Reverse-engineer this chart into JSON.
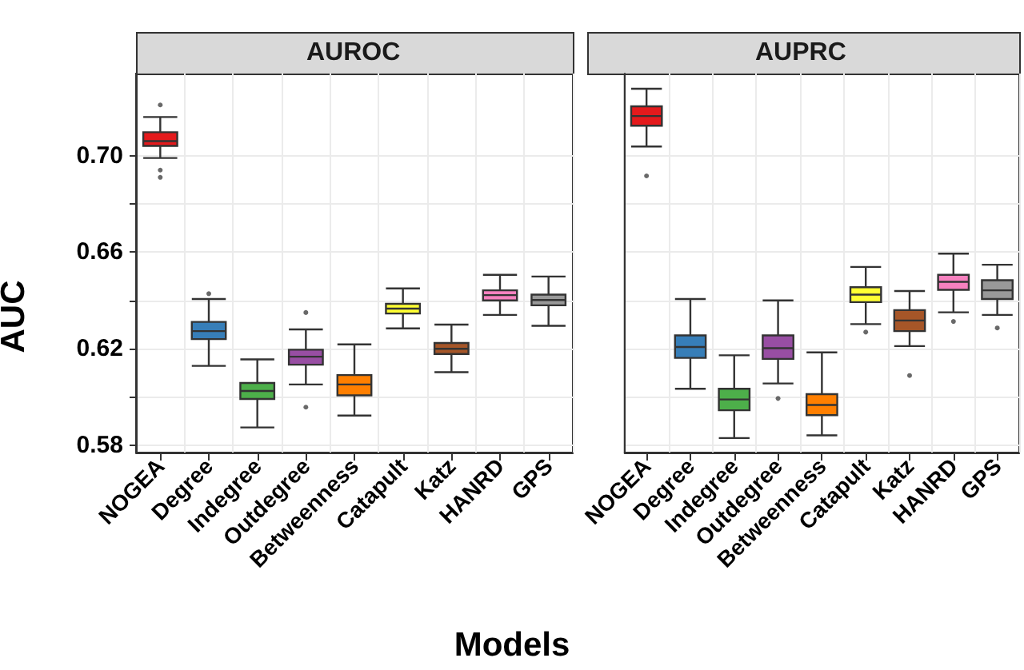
{
  "chart_data": [
    {
      "type": "box",
      "title": "AUROC",
      "xlabel": "Models",
      "ylabel": "AUC",
      "categories": [
        "NOGEA",
        "Degree",
        "Indegree",
        "Outdegree",
        "Betweenness",
        "Catapult",
        "Katz",
        "HANRD",
        "GPS"
      ],
      "colors": [
        "#e41a1c",
        "#377eb8",
        "#4daf4a",
        "#984ea3",
        "#ff7f00",
        "#ffff33",
        "#a65628",
        "#f781bf",
        "#999999"
      ],
      "boxes": [
        {
          "low": 0.699,
          "q1": 0.704,
          "median": 0.706,
          "q3": 0.7097,
          "high": 0.716,
          "outliers": [
            0.691,
            0.694,
            0.721
          ]
        },
        {
          "low": 0.6129,
          "q1": 0.624,
          "median": 0.6273,
          "q3": 0.6311,
          "high": 0.6406,
          "outliers": [
            0.6428
          ]
        },
        {
          "low": 0.5874,
          "q1": 0.5992,
          "median": 0.6025,
          "q3": 0.6058,
          "high": 0.6156
        },
        {
          "low": 0.6052,
          "q1": 0.6134,
          "median": 0.6167,
          "q3": 0.6196,
          "high": 0.628,
          "outliers": [
            0.635,
            0.5958
          ]
        },
        {
          "low": 0.5923,
          "q1": 0.6007,
          "median": 0.6052,
          "q3": 0.6091,
          "high": 0.6218
        },
        {
          "low": 0.6284,
          "q1": 0.6346,
          "median": 0.6366,
          "q3": 0.6386,
          "high": 0.645
        },
        {
          "low": 0.6103,
          "q1": 0.6178,
          "median": 0.62,
          "q3": 0.6224,
          "high": 0.63
        },
        {
          "low": 0.634,
          "q1": 0.64,
          "median": 0.6422,
          "q3": 0.6442,
          "high": 0.6506
        },
        {
          "low": 0.6295,
          "q1": 0.638,
          "median": 0.6402,
          "q3": 0.6424,
          "high": 0.6499
        }
      ],
      "ylim": [
        0.577,
        0.734
      ],
      "yticks": [
        0.58,
        {
          "value": 0.6,
          "label": null
        },
        0.62,
        {
          "value": 0.64,
          "label": null
        },
        0.66,
        {
          "value": 0.68,
          "label": null
        },
        {
          "value": 0.7,
          "label": "0.70"
        }
      ],
      "grid": true
    },
    {
      "type": "box",
      "title": "AUPRC",
      "categories": [
        "NOGEA",
        "Degree",
        "Indegree",
        "Outdegree",
        "Betweenness",
        "Catapult",
        "Katz",
        "HANRD",
        "GPS"
      ],
      "colors": [
        "#e41a1c",
        "#377eb8",
        "#4daf4a",
        "#984ea3",
        "#ff7f00",
        "#ffff33",
        "#a65628",
        "#f781bf",
        "#999999"
      ],
      "boxes": [
        {
          "low": 0.7038,
          "q1": 0.7124,
          "median": 0.7164,
          "q3": 0.7204,
          "high": 0.7277,
          "outliers": [
            0.6916
          ]
        },
        {
          "low": 0.6034,
          "q1": 0.6162,
          "median": 0.6207,
          "q3": 0.6255,
          "high": 0.6406
        },
        {
          "low": 0.583,
          "q1": 0.5945,
          "median": 0.599,
          "q3": 0.6034,
          "high": 0.6173
        },
        {
          "low": 0.6056,
          "q1": 0.6158,
          "median": 0.6202,
          "q3": 0.6255,
          "high": 0.64,
          "outliers": [
            0.5994
          ]
        },
        {
          "low": 0.5841,
          "q1": 0.5925,
          "median": 0.5967,
          "q3": 0.6012,
          "high": 0.6185
        },
        {
          "low": 0.6302,
          "q1": 0.6393,
          "median": 0.6424,
          "q3": 0.6455,
          "high": 0.6539,
          "outliers": [
            0.6269
          ]
        },
        {
          "low": 0.6211,
          "q1": 0.6273,
          "median": 0.6317,
          "q3": 0.636,
          "high": 0.6439,
          "outliers": [
            0.6089
          ]
        },
        {
          "low": 0.6351,
          "q1": 0.6444,
          "median": 0.6477,
          "q3": 0.6506,
          "high": 0.6594,
          "outliers": [
            0.6313
          ]
        },
        {
          "low": 0.634,
          "q1": 0.6406,
          "median": 0.6442,
          "q3": 0.6484,
          "high": 0.6548,
          "outliers": [
            0.6286
          ]
        }
      ],
      "ylim": [
        0.577,
        0.734
      ],
      "yticks": [
        0.58,
        {
          "value": 0.6,
          "label": null
        },
        0.62,
        {
          "value": 0.64,
          "label": null
        },
        0.66,
        {
          "value": 0.68,
          "label": null
        },
        0.7
      ],
      "grid": true,
      "tick_labels": "x"
    }
  ]
}
